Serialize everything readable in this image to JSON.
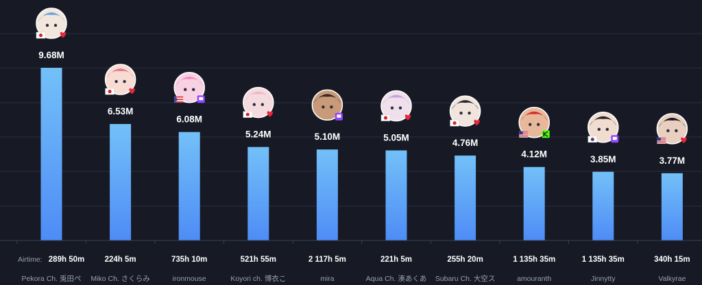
{
  "chart_data": {
    "type": "bar",
    "airtime_label": "Airtime:",
    "categories": [
      "Pekora Ch. 兎田ぺ",
      "Miko Ch. さくらみ",
      "ironmouse",
      "Koyori ch. 博衣こ",
      "mira",
      "Aqua Ch. 湊あくあ",
      "Subaru Ch. 大空ス",
      "amouranth",
      "Jinnytty",
      "Valkyrae"
    ],
    "values": [
      9.68,
      6.53,
      6.08,
      5.24,
      5.1,
      5.05,
      4.76,
      4.12,
      3.85,
      3.77
    ],
    "value_labels": [
      "9.68M",
      "6.53M",
      "6.08M",
      "5.24M",
      "5.10M",
      "5.05M",
      "4.76M",
      "4.12M",
      "3.85M",
      "3.77M"
    ],
    "airtime": [
      "289h 50m",
      "224h 5m",
      "735h 10m",
      "521h 55m",
      "2 117h 5m",
      "221h 5m",
      "255h 20m",
      "1 135h 35m",
      "1 135h 35m",
      "340h 15m"
    ],
    "countries": [
      "JP",
      "JP",
      "PR",
      "JP",
      "",
      "JP",
      "JP",
      "US",
      "KR",
      "US"
    ],
    "platforms": [
      "youtube",
      "youtube",
      "twitch",
      "youtube",
      "twitch",
      "youtube",
      "youtube",
      "kick",
      "twitch",
      "youtube"
    ],
    "ylim": [
      0,
      10
    ],
    "grid": true,
    "colors": {
      "bar_top": "#71bdf7",
      "bar_bottom": "#4f8ff7",
      "youtube": "#e8263a",
      "twitch": "#9146ff",
      "kick": "#53fc18",
      "text": "#ffffff",
      "muted": "#9aa0ad"
    }
  }
}
